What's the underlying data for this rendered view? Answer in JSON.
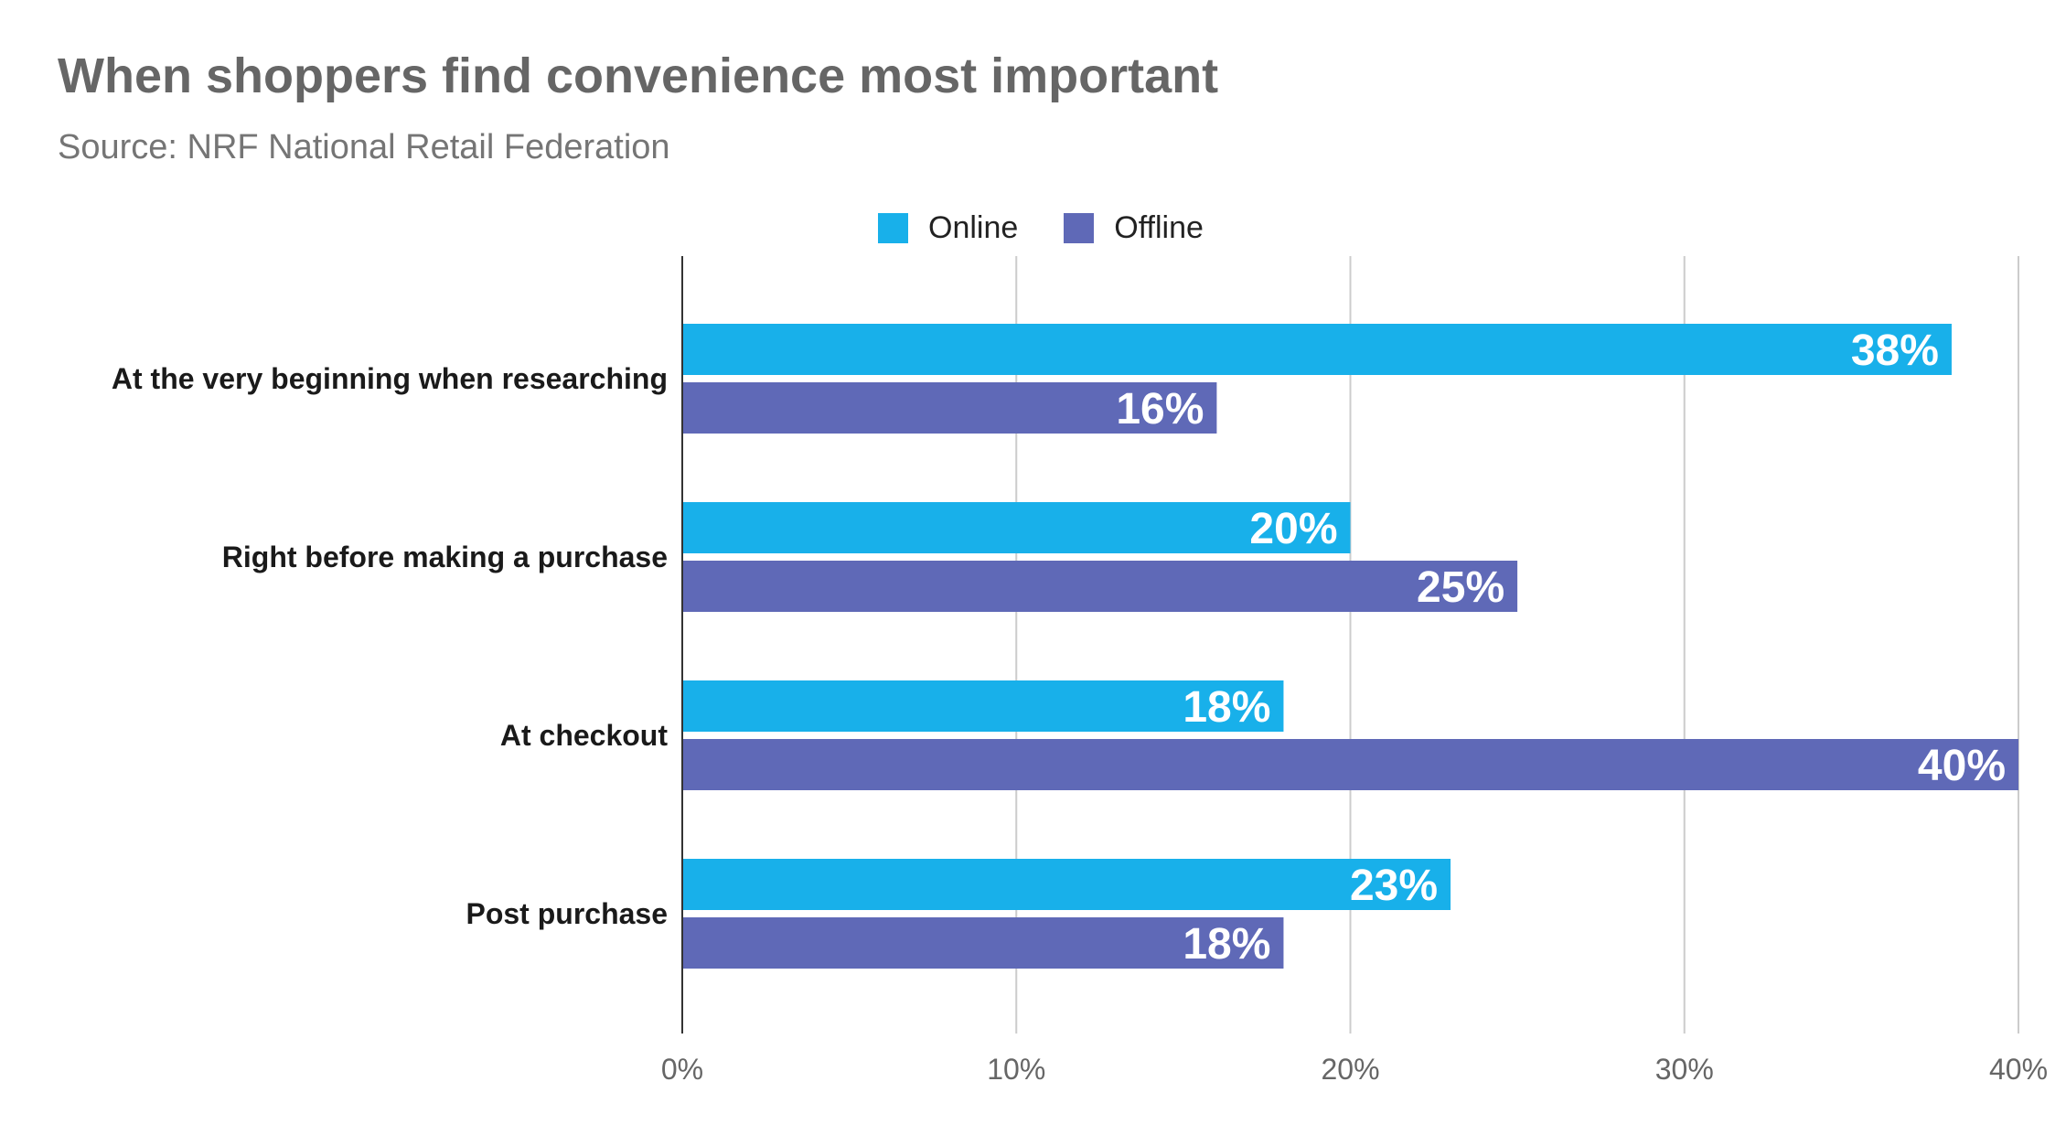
{
  "chart_data": {
    "type": "bar",
    "orientation": "horizontal",
    "title": "When shoppers find convenience most important",
    "subtitle": "Source: NRF National Retail Federation",
    "categories": [
      "At the very beginning when researching",
      "Right before making a purchase",
      "At checkout",
      "Post purchase"
    ],
    "series": [
      {
        "name": "Online",
        "color": "#18b0ea",
        "values": [
          38,
          20,
          18,
          23
        ]
      },
      {
        "name": "Offline",
        "color": "#5f69b7",
        "values": [
          16,
          25,
          40,
          18
        ]
      }
    ],
    "data_labels": [
      [
        "38%",
        "20%",
        "18%",
        "23%"
      ],
      [
        "16%",
        "25%",
        "40%",
        "18%"
      ]
    ],
    "x_ticks": [
      "0%",
      "10%",
      "20%",
      "30%",
      "40%"
    ],
    "xlim": [
      0,
      40
    ],
    "grid": true,
    "legend_position": "top"
  }
}
